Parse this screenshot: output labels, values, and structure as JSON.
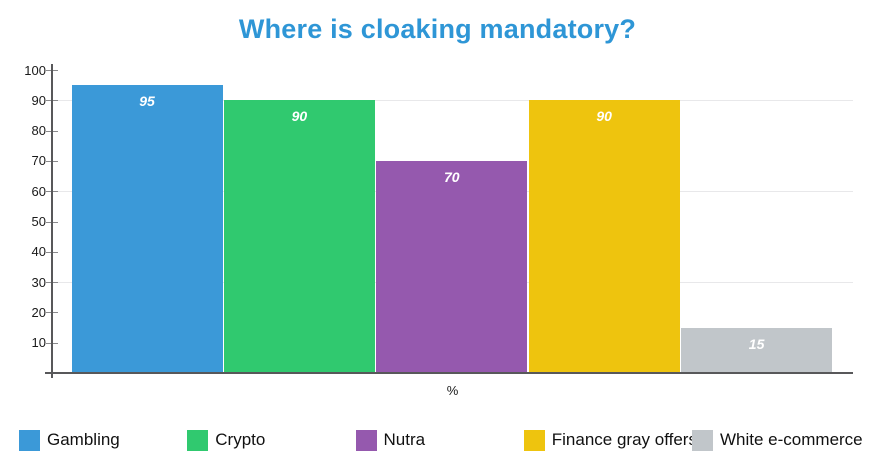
{
  "chart_data": {
    "type": "bar",
    "title": "Where is cloaking mandatory?",
    "title_color": "#2e96d6",
    "xlabel": "%",
    "ylabel": "",
    "categories": [
      "Gambling",
      "Crypto",
      "Nutra",
      "Finance gray offers",
      "White e-commerce"
    ],
    "values": [
      95,
      90,
      70,
      90,
      15
    ],
    "colors": [
      "#3b99d8",
      "#30c96f",
      "#9559ae",
      "#eec40e",
      "#c1c6ca"
    ],
    "bar_label_color": "#ffffff",
    "ylim": [
      0,
      100
    ],
    "yticks": [
      10,
      20,
      30,
      40,
      50,
      60,
      70,
      80,
      90,
      100
    ],
    "gridlines": [
      30,
      60,
      90
    ],
    "grid": "horizontal-partial",
    "legend_position": "bottom"
  }
}
